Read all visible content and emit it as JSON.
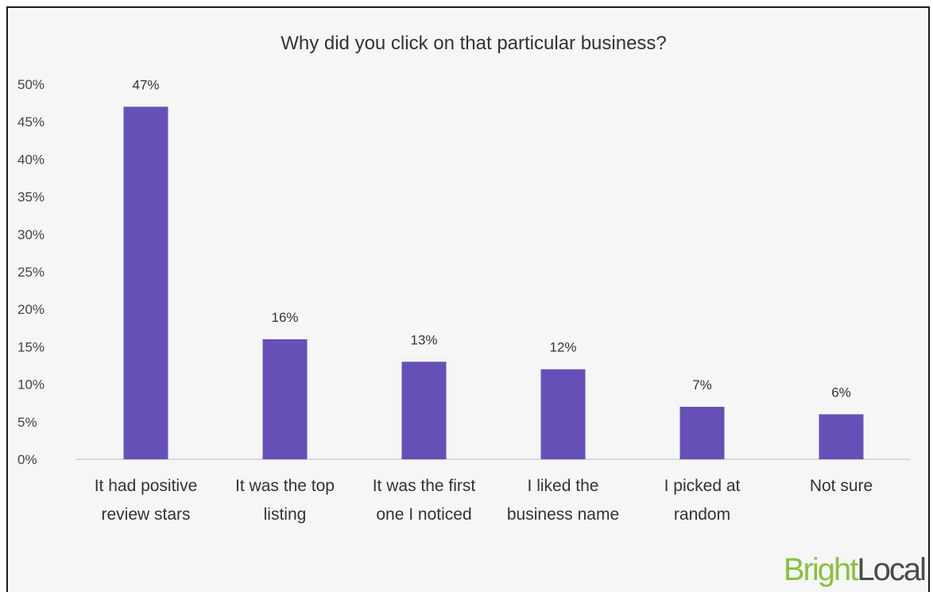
{
  "chart_data": {
    "type": "bar",
    "title": "Why did you click on that particular business?",
    "categories": [
      [
        "It had positive",
        "review stars"
      ],
      [
        "It was the top",
        "listing"
      ],
      [
        "It was the first",
        "one I noticed"
      ],
      [
        "I liked the",
        "business name"
      ],
      [
        "I picked at",
        "random"
      ],
      [
        "Not sure"
      ]
    ],
    "values": [
      47,
      16,
      13,
      12,
      7,
      6
    ],
    "data_labels": [
      "47%",
      "16%",
      "13%",
      "12%",
      "7%",
      "6%"
    ],
    "y_ticks": [
      "0%",
      "5%",
      "10%",
      "15%",
      "20%",
      "25%",
      "30%",
      "35%",
      "40%",
      "45%",
      "50%"
    ],
    "ylim": [
      0,
      50
    ],
    "grid": false,
    "legend": "none",
    "bar_color": "#6650b8"
  },
  "branding": {
    "logo_part1": "Bright",
    "logo_part2": "Local",
    "logo_color1": "#8cbf3f",
    "logo_color2": "#4a4a4a"
  }
}
